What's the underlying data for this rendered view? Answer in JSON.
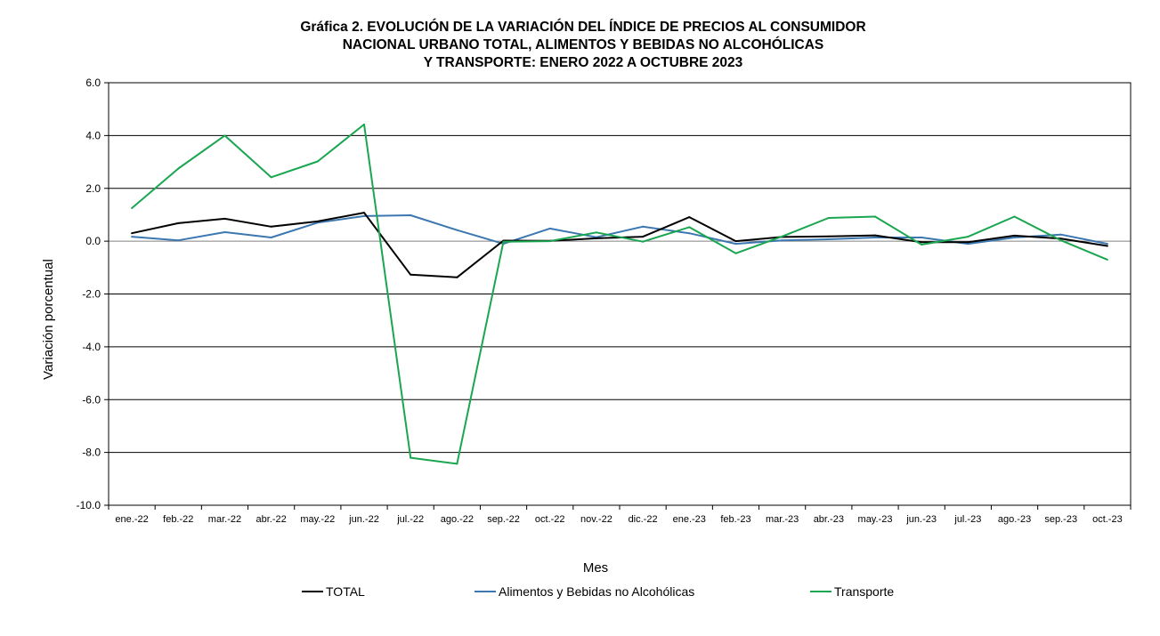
{
  "chart_data": {
    "type": "line",
    "title_lines": [
      "Gráfica  2.  EVOLUCIÓN  DE  LA  VARIACIÓN  DEL  ÍNDICE  DE  PRECIOS  AL  CONSUMIDOR",
      "NACIONAL  URBANO  TOTAL,  ALIMENTOS  Y  BEBIDAS  NO  ALCOHÓLICAS",
      "Y  TRANSPORTE:  ENERO  2022  A  OCTUBRE  2023"
    ],
    "xlabel": "Mes",
    "ylabel": "Variación porcentual",
    "ylim": [
      -10,
      6
    ],
    "yticks": [
      6,
      4,
      2,
      0,
      -2,
      -4,
      -6,
      -8,
      -10
    ],
    "ytick_labels": [
      "6.0",
      "4.0",
      "2.0",
      "0.0",
      "-2.0",
      "-4.0",
      "-6.0",
      "-8.0",
      "-10.0"
    ],
    "grid": "horizontal",
    "legend_position": "bottom",
    "categories": [
      "ene.-22",
      "feb.-22",
      "mar.-22",
      "abr.-22",
      "may.-22",
      "jun.-22",
      "jul.-22",
      "ago.-22",
      "sep.-22",
      "oct.-22",
      "nov.-22",
      "dic.-22",
      "ene.-23",
      "feb.-23",
      "mar.-23",
      "abr.-23",
      "may.-23",
      "jun.-23",
      "jul.-23",
      "ago.-23",
      "sep.-23",
      "oct.-23"
    ],
    "series": [
      {
        "name": "TOTAL",
        "color": "#000000",
        "values": [
          0.3,
          0.68,
          0.85,
          0.55,
          0.75,
          1.08,
          -1.27,
          -1.37,
          0.02,
          0.01,
          0.11,
          0.17,
          0.91,
          0.0,
          0.16,
          0.18,
          0.22,
          -0.04,
          -0.04,
          0.21,
          0.1,
          -0.18
        ]
      },
      {
        "name": "Alimentos y Bebidas no Alcohólicas",
        "color": "#3b77b0",
        "values": [
          0.17,
          0.03,
          0.34,
          0.14,
          0.7,
          0.95,
          0.98,
          0.42,
          -0.1,
          0.48,
          0.15,
          0.55,
          0.3,
          -0.1,
          0.03,
          0.07,
          0.14,
          0.14,
          -0.1,
          0.14,
          0.25,
          -0.1
        ]
      },
      {
        "name": "Transporte",
        "color": "#1aa650",
        "values": [
          1.25,
          2.75,
          4.0,
          2.42,
          3.02,
          4.42,
          -8.2,
          -8.43,
          -0.02,
          0.0,
          0.33,
          -0.02,
          0.53,
          -0.46,
          0.18,
          0.88,
          0.93,
          -0.13,
          0.17,
          0.93,
          0.03,
          -0.7
        ]
      }
    ]
  }
}
